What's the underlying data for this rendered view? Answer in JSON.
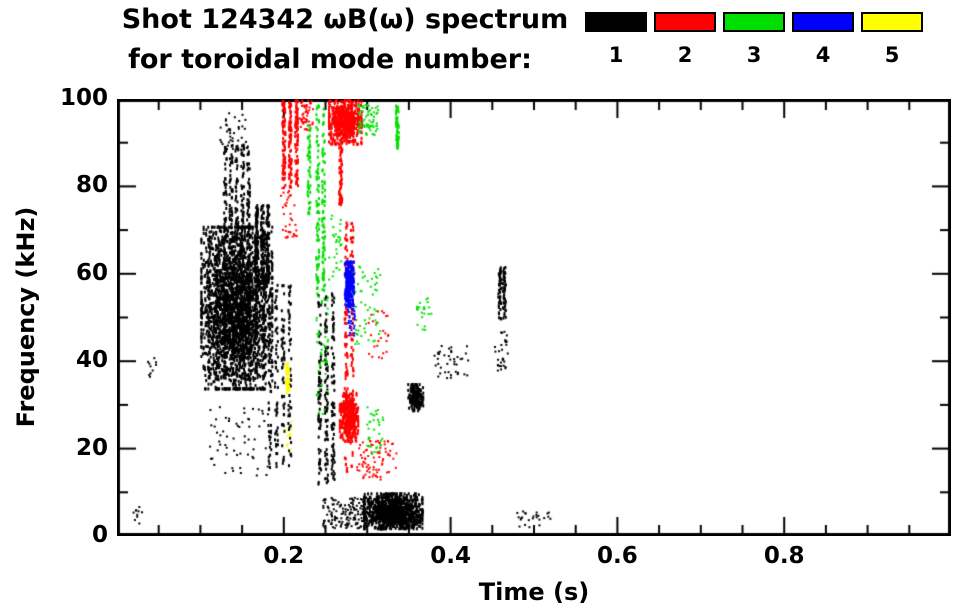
{
  "title": {
    "line1": "Shot 124342 ωB(ω) spectrum",
    "line2": "for toroidal mode number:"
  },
  "legend": {
    "items": [
      {
        "label": "1",
        "color": "#000000"
      },
      {
        "label": "2",
        "color": "#ff0000"
      },
      {
        "label": "3",
        "color": "#00e000"
      },
      {
        "label": "4",
        "color": "#0000ff"
      },
      {
        "label": "5",
        "color": "#ffff00"
      }
    ]
  },
  "chart_data": {
    "type": "scatter",
    "title": "Shot 124342 ωB(ω) spectrum for toroidal mode number",
    "xlabel": "Time (s)",
    "ylabel": "Frequency (kHz)",
    "xlim": [
      0,
      1.0
    ],
    "ylim": [
      0,
      100
    ],
    "x_ticks": [
      {
        "v": 0.2,
        "label": "0.2"
      },
      {
        "v": 0.4,
        "label": "0.4"
      },
      {
        "v": 0.6,
        "label": "0.6"
      },
      {
        "v": 0.8,
        "label": "0.8"
      }
    ],
    "y_ticks": [
      {
        "v": 0,
        "label": "0"
      },
      {
        "v": 20,
        "label": "20"
      },
      {
        "v": 40,
        "label": "40"
      },
      {
        "v": 60,
        "label": "60"
      },
      {
        "v": 80,
        "label": "80"
      },
      {
        "v": 100,
        "label": "100"
      }
    ],
    "x_minor_step": 0.05,
    "y_minor_step": 10,
    "grid": false,
    "legend_position": "top-right",
    "series": [
      {
        "name": "n=1",
        "color": "#000000",
        "clusters": [
          {
            "kind": "blob",
            "t": [
              0.1,
              0.185
            ],
            "f": [
              34,
              71
            ],
            "n": 2400
          },
          {
            "kind": "vstreak",
            "t": [
              0.105,
              0.18
            ],
            "f": [
              36,
              70
            ],
            "cols": 8,
            "n": 500
          },
          {
            "kind": "vstreak",
            "t": [
              0.125,
              0.16
            ],
            "f": [
              68,
              90
            ],
            "cols": 5,
            "n": 220
          },
          {
            "kind": "scatter",
            "t": [
              0.12,
              0.155
            ],
            "f": [
              88,
              97
            ],
            "n": 40
          },
          {
            "kind": "vstreak",
            "t": [
              0.163,
              0.183
            ],
            "f": [
              58,
              76
            ],
            "cols": 3,
            "n": 230
          },
          {
            "kind": "vstreak",
            "t": [
              0.178,
              0.21
            ],
            "f": [
              16,
              58
            ],
            "cols": 4,
            "n": 200
          },
          {
            "kind": "scatter",
            "t": [
              0.11,
              0.18
            ],
            "f": [
              14,
              30
            ],
            "n": 60
          },
          {
            "kind": "vstreak",
            "t": [
              0.238,
              0.262
            ],
            "f": [
              12,
              56
            ],
            "cols": 3,
            "n": 240
          },
          {
            "kind": "scatter",
            "t": [
              0.245,
              0.3
            ],
            "f": [
              2,
              9
            ],
            "n": 150
          },
          {
            "kind": "blob",
            "t": [
              0.295,
              0.365
            ],
            "f": [
              2,
              10
            ],
            "n": 1100
          },
          {
            "kind": "blob",
            "t": [
              0.348,
              0.366
            ],
            "f": [
              29,
              35
            ],
            "n": 170
          },
          {
            "kind": "scatter",
            "t": [
              0.378,
              0.42
            ],
            "f": [
              36,
              44
            ],
            "n": 40
          },
          {
            "kind": "vstreak",
            "t": [
              0.455,
              0.466
            ],
            "f": [
              50,
              62
            ],
            "cols": 2,
            "n": 90
          },
          {
            "kind": "scatter",
            "t": [
              0.452,
              0.468
            ],
            "f": [
              38,
              47
            ],
            "n": 30
          },
          {
            "kind": "scatter",
            "t": [
              0.478,
              0.52
            ],
            "f": [
              2,
              6
            ],
            "n": 25
          },
          {
            "kind": "scatter",
            "t": [
              0.018,
              0.032
            ],
            "f": [
              3,
              7
            ],
            "n": 10
          },
          {
            "kind": "scatter",
            "t": [
              0.034,
              0.046
            ],
            "f": [
              36,
              41
            ],
            "n": 10
          }
        ]
      },
      {
        "name": "n=2",
        "color": "#ff0000",
        "clusters": [
          {
            "kind": "vstreak",
            "t": [
              0.195,
              0.218
            ],
            "f": [
              80,
              100
            ],
            "cols": 3,
            "n": 230
          },
          {
            "kind": "scatter",
            "t": [
              0.195,
              0.215
            ],
            "f": [
              68,
              80
            ],
            "n": 35
          },
          {
            "kind": "blob",
            "t": [
              0.253,
              0.292
            ],
            "f": [
              90,
              100
            ],
            "n": 600
          },
          {
            "kind": "vstreak",
            "t": [
              0.262,
              0.272
            ],
            "f": [
              76,
              90
            ],
            "cols": 1,
            "n": 60
          },
          {
            "kind": "vstreak",
            "t": [
              0.27,
              0.284
            ],
            "f": [
              15,
              72
            ],
            "cols": 2,
            "n": 160
          },
          {
            "kind": "blob",
            "t": [
              0.266,
              0.288
            ],
            "f": [
              22,
              33
            ],
            "n": 380
          },
          {
            "kind": "scatter",
            "t": [
              0.285,
              0.335
            ],
            "f": [
              13,
              22
            ],
            "n": 80
          },
          {
            "kind": "scatter",
            "t": [
              0.3,
              0.325
            ],
            "f": [
              40,
              52
            ],
            "n": 25
          },
          {
            "kind": "scatter",
            "t": [
              0.218,
              0.235
            ],
            "f": [
              93,
              100
            ],
            "n": 50
          }
        ]
      },
      {
        "name": "n=3",
        "color": "#00e000",
        "clusters": [
          {
            "kind": "vstreak",
            "t": [
              0.236,
              0.25
            ],
            "f": [
              55,
              99
            ],
            "cols": 2,
            "n": 160
          },
          {
            "kind": "vstreak",
            "t": [
              0.224,
              0.234
            ],
            "f": [
              74,
              96
            ],
            "cols": 1,
            "n": 50
          },
          {
            "kind": "scatter",
            "t": [
              0.238,
              0.252
            ],
            "f": [
              28,
              55
            ],
            "n": 45
          },
          {
            "kind": "scatter",
            "t": [
              0.288,
              0.312
            ],
            "f": [
              92,
              99
            ],
            "n": 70
          },
          {
            "kind": "vstreak",
            "t": [
              0.33,
              0.34
            ],
            "f": [
              89,
              99
            ],
            "cols": 1,
            "n": 55
          },
          {
            "kind": "scatter",
            "t": [
              0.283,
              0.315
            ],
            "f": [
              44,
              62
            ],
            "n": 55
          },
          {
            "kind": "scatter",
            "t": [
              0.298,
              0.318
            ],
            "f": [
              19,
              30
            ],
            "n": 35
          },
          {
            "kind": "scatter",
            "t": [
              0.253,
              0.268
            ],
            "f": [
              58,
              74
            ],
            "n": 30
          },
          {
            "kind": "scatter",
            "t": [
              0.358,
              0.376
            ],
            "f": [
              47,
              55
            ],
            "n": 22
          }
        ]
      },
      {
        "name": "n=4",
        "color": "#0000ff",
        "clusters": [
          {
            "kind": "blob",
            "t": [
              0.272,
              0.283
            ],
            "f": [
              53,
              63
            ],
            "n": 240
          },
          {
            "kind": "scatter",
            "t": [
              0.275,
              0.284
            ],
            "f": [
              46,
              53
            ],
            "n": 30
          }
        ]
      },
      {
        "name": "n=5",
        "color": "#ffff00",
        "clusters": [
          {
            "kind": "vstreak",
            "t": [
              0.2,
              0.207
            ],
            "f": [
              33,
              40
            ],
            "cols": 1,
            "n": 45
          },
          {
            "kind": "scatter",
            "t": [
              0.202,
              0.21
            ],
            "f": [
              20,
              27
            ],
            "n": 10
          }
        ]
      }
    ]
  }
}
